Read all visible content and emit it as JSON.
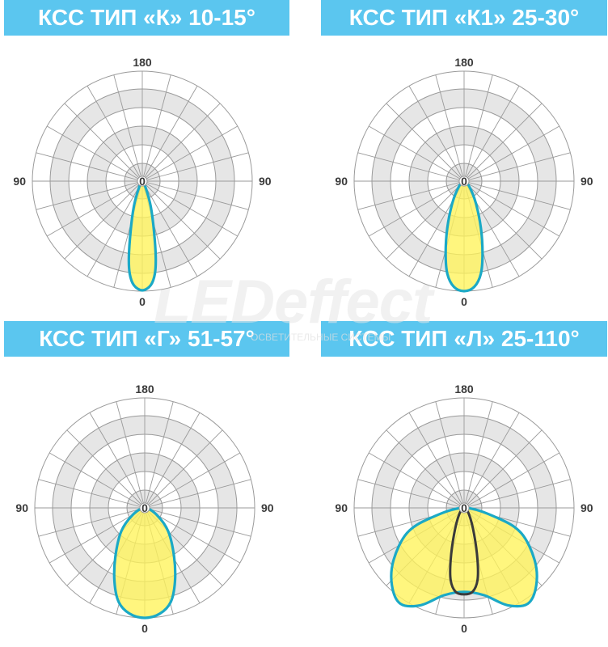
{
  "watermark": {
    "text": "LEDeffect",
    "subtitle": "ОСВЕТИТЕЛЬНЫЕ СИСТЕМЫ"
  },
  "colors": {
    "banner": "#5bc6ef",
    "ring_fill": "#e6e6e6",
    "grid_line": "#9a9a9a",
    "lobe_fill": "#fff35a",
    "lobe_outline": "#1ba9c6",
    "inner_lobe_outline": "#3a3a3a",
    "label_text": "#3a3a3a"
  },
  "panels": [
    {
      "title": "КСС ТИП «К» 10-15°",
      "label_top": "180",
      "label_left": "90",
      "label_right": "90",
      "label_bottom": "0",
      "center_label": "0",
      "curve": "K"
    },
    {
      "title": "КСС ТИП «К1» 25-30°",
      "label_top": "180",
      "label_left": "90",
      "label_right": "90",
      "label_bottom": "0",
      "center_label": "0",
      "curve": "K1"
    },
    {
      "title": "КСС ТИП «Г» 51-57°",
      "label_top": "180",
      "label_left": "90",
      "label_right": "90",
      "label_bottom": "0",
      "center_label": "0",
      "curve": "G"
    },
    {
      "title": "КСС ТИП «Л» 25-110°",
      "label_top": "180",
      "label_left": "90",
      "label_right": "90",
      "label_bottom": "0",
      "center_label": "0",
      "curve": "L"
    }
  ]
}
